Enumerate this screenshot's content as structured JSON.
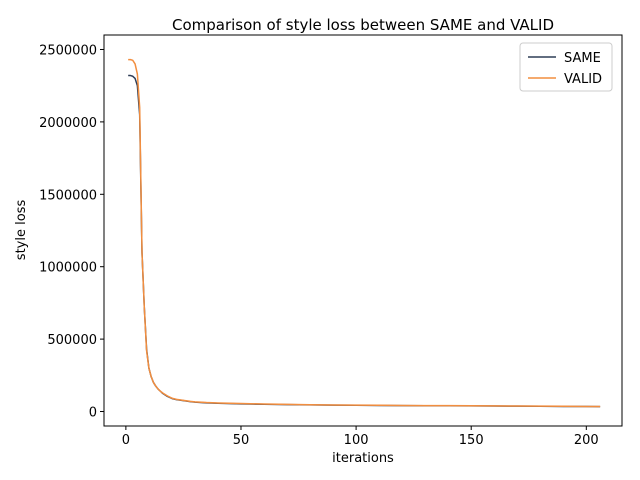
{
  "chart_data": {
    "type": "line",
    "title": "Comparison of style loss between SAME and VALID",
    "xlabel": "iterations",
    "ylabel": "style loss",
    "xlim": [
      -9.5,
      215.5
    ],
    "ylim": [
      -100000,
      2600000
    ],
    "xticks": [
      0,
      50,
      100,
      150,
      200
    ],
    "xtick_labels": [
      "0",
      "50",
      "100",
      "150",
      "200"
    ],
    "yticks": [
      0,
      500000,
      1000000,
      1500000,
      2000000,
      2500000
    ],
    "ytick_labels": [
      "0",
      "500000",
      "1000000",
      "1500000",
      "2000000",
      "2500000"
    ],
    "grid": false,
    "legend_position": "upper right",
    "series": [
      {
        "name": "SAME",
        "color": "#2f3e57",
        "x": [
          1,
          2,
          3,
          4,
          5,
          6,
          7,
          8,
          9,
          10,
          11,
          12,
          13,
          14,
          15,
          16,
          18,
          20,
          22,
          25,
          28,
          30,
          35,
          40,
          50,
          60,
          70,
          80,
          90,
          100,
          110,
          120,
          130,
          140,
          150,
          160,
          170,
          180,
          190,
          200,
          206
        ],
        "y": [
          2320000,
          2320000,
          2315000,
          2300000,
          2250000,
          2050000,
          1100000,
          720000,
          430000,
          300000,
          240000,
          200000,
          175000,
          155000,
          140000,
          125000,
          105000,
          90000,
          82000,
          75000,
          68000,
          65000,
          60000,
          57000,
          53000,
          50000,
          48000,
          46000,
          44000,
          43000,
          42000,
          41000,
          40000,
          40000,
          39000,
          38000,
          37000,
          36000,
          35000,
          35000,
          34000
        ]
      },
      {
        "name": "VALID",
        "color": "#f28e3f",
        "x": [
          1,
          2,
          3,
          4,
          5,
          6,
          7,
          8,
          9,
          10,
          11,
          12,
          13,
          14,
          15,
          16,
          18,
          20,
          22,
          25,
          28,
          30,
          35,
          40,
          50,
          60,
          70,
          80,
          90,
          100,
          110,
          120,
          130,
          140,
          150,
          160,
          170,
          180,
          190,
          200,
          206
        ],
        "y": [
          2430000,
          2430000,
          2425000,
          2400000,
          2330000,
          2100000,
          1100000,
          720000,
          420000,
          300000,
          240000,
          200000,
          175000,
          155000,
          140000,
          128000,
          108000,
          92000,
          84000,
          77000,
          70000,
          67000,
          62000,
          59000,
          55000,
          52000,
          49000,
          47000,
          45000,
          44000,
          43000,
          42000,
          41000,
          41000,
          40000,
          39000,
          38000,
          37000,
          36000,
          35000,
          35000
        ]
      }
    ]
  }
}
